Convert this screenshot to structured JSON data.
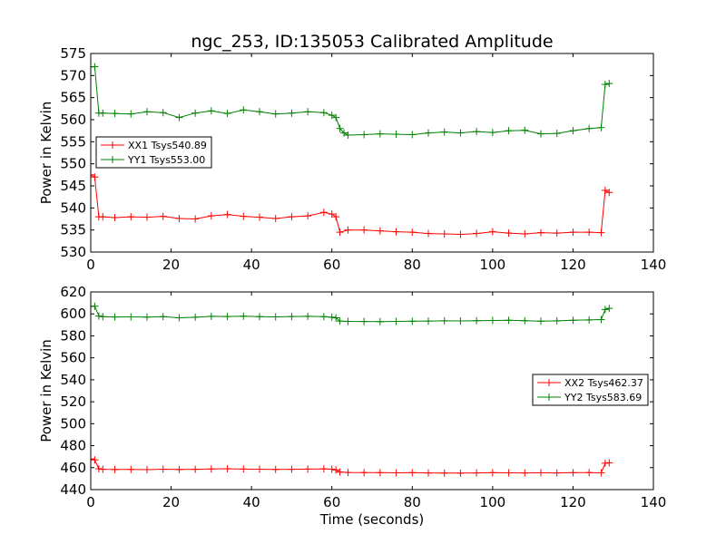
{
  "chart_data": {
    "title": "ngc_253, ID:135053 Calibrated Amplitude",
    "xlabel": "Time (seconds)",
    "colors": {
      "XX": "#ff0000",
      "YY": "#008000"
    },
    "panels": [
      {
        "type": "line",
        "ylabel": "Power in Kelvin",
        "xlim": [
          0,
          140
        ],
        "ylim": [
          530,
          575
        ],
        "xticks": [
          "0",
          "20",
          "40",
          "60",
          "80",
          "100",
          "120",
          "140"
        ],
        "yticks": [
          "530",
          "535",
          "540",
          "545",
          "550",
          "555",
          "560",
          "565",
          "570",
          "575"
        ],
        "legend_position": "center-left",
        "series": [
          {
            "name": "XX1 Tsys540.89",
            "color": "#ff0000",
            "x": [
              0,
              1,
              2,
              3,
              6,
              10,
              14,
              18,
              22,
              26,
              30,
              34,
              38,
              42,
              46,
              50,
              54,
              58,
              60,
              61,
              62,
              64,
              68,
              72,
              76,
              80,
              84,
              88,
              92,
              96,
              100,
              104,
              108,
              112,
              116,
              120,
              124,
              127,
              128,
              129
            ],
            "y": [
              547.5,
              547,
              538,
              538,
              537.8,
              538,
              537.9,
              538.1,
              537.6,
              537.5,
              538.2,
              538.5,
              538.1,
              537.9,
              537.6,
              538,
              538.2,
              539,
              538.6,
              538,
              534.5,
              535,
              535,
              534.8,
              534.6,
              534.5,
              534.2,
              534.1,
              534,
              534.2,
              534.6,
              534.3,
              534.1,
              534.4,
              534.3,
              534.5,
              534.5,
              534.4,
              544,
              543.5
            ]
          },
          {
            "name": "YY1 Tsys553.00",
            "color": "#008000",
            "x": [
              0,
              1,
              2,
              3,
              6,
              10,
              14,
              18,
              22,
              26,
              30,
              34,
              38,
              42,
              46,
              50,
              54,
              58,
              60,
              61,
              62,
              63,
              64,
              68,
              72,
              76,
              80,
              84,
              88,
              92,
              96,
              100,
              104,
              108,
              112,
              116,
              120,
              124,
              127,
              128,
              129
            ],
            "y": [
              572,
              572,
              561.5,
              561.5,
              561.4,
              561.3,
              561.8,
              561.6,
              560.5,
              561.5,
              562,
              561.4,
              562.2,
              561.8,
              561.3,
              561.5,
              561.8,
              561.6,
              561,
              560.5,
              558,
              557,
              556.5,
              556.6,
              556.8,
              556.7,
              556.6,
              557,
              557.2,
              557,
              557.3,
              557.1,
              557.5,
              557.6,
              556.8,
              556.9,
              557.5,
              558,
              558.2,
              568,
              568.2
            ]
          }
        ]
      },
      {
        "type": "line",
        "ylabel": "Power in Kelvin",
        "xlim": [
          0,
          140
        ],
        "ylim": [
          440,
          620
        ],
        "xticks": [
          "0",
          "20",
          "40",
          "60",
          "80",
          "100",
          "120",
          "140"
        ],
        "yticks": [
          "440",
          "460",
          "480",
          "500",
          "520",
          "540",
          "560",
          "580",
          "600",
          "620"
        ],
        "legend_position": "center-right",
        "series": [
          {
            "name": "XX2 Tsys462.37",
            "color": "#ff0000",
            "x": [
              0,
              1,
              2,
              3,
              6,
              10,
              14,
              18,
              22,
              26,
              30,
              34,
              38,
              42,
              46,
              50,
              54,
              58,
              60,
              61,
              62,
              64,
              68,
              72,
              76,
              80,
              84,
              88,
              92,
              96,
              100,
              104,
              108,
              112,
              116,
              120,
              124,
              127,
              128,
              129
            ],
            "y": [
              468,
              467,
              459,
              458.5,
              458.3,
              458.4,
              458.2,
              458.6,
              458.3,
              458.5,
              458.8,
              459,
              458.7,
              458.6,
              458.4,
              458.5,
              458.7,
              458.9,
              458.6,
              458,
              456,
              455.6,
              455.5,
              455.4,
              455.3,
              455.4,
              455.2,
              455.1,
              455,
              455.2,
              455.4,
              455.3,
              455.2,
              455.3,
              455.2,
              455.4,
              455.5,
              455.3,
              464,
              464.5
            ]
          },
          {
            "name": "YY2 Tsys583.69",
            "color": "#008000",
            "x": [
              0,
              1,
              2,
              3,
              6,
              10,
              14,
              18,
              22,
              26,
              30,
              34,
              38,
              42,
              46,
              50,
              54,
              58,
              60,
              61,
              62,
              64,
              68,
              72,
              76,
              80,
              84,
              88,
              92,
              96,
              100,
              104,
              108,
              112,
              116,
              120,
              124,
              127,
              128,
              129
            ],
            "y": [
              607,
              607,
              598,
              597.5,
              597.2,
              597.3,
              597.1,
              597.5,
              596.5,
              597,
              597.8,
              597.6,
              597.9,
              597.5,
              597.3,
              597.6,
              597.8,
              597.5,
              597,
              596.5,
              593.5,
              593.2,
              593.1,
              593,
              593.2,
              593.3,
              593.5,
              593.7,
              593.6,
              593.8,
              594,
              594.2,
              593.8,
              593.4,
              593.7,
              594.2,
              594.5,
              594.8,
              604,
              605
            ]
          }
        ]
      }
    ]
  }
}
